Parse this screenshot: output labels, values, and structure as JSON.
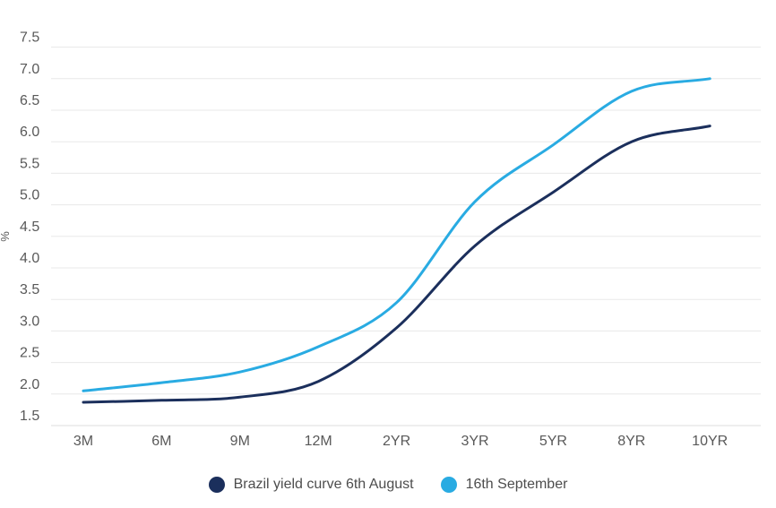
{
  "chart_data": {
    "type": "line",
    "categories": [
      "3M",
      "6M",
      "9M",
      "12M",
      "2YR",
      "3YR",
      "5YR",
      "8YR",
      "10YR"
    ],
    "series": [
      {
        "name": "Brazil yield curve 6th August",
        "color": "#1b2f5c",
        "values": [
          1.87,
          1.9,
          1.95,
          2.2,
          3.05,
          4.35,
          5.2,
          6.0,
          6.25
        ]
      },
      {
        "name": "16th September",
        "color": "#29abe2",
        "values": [
          2.05,
          2.18,
          2.35,
          2.75,
          3.45,
          5.05,
          5.95,
          6.8,
          7.0
        ]
      }
    ],
    "title": "",
    "xlabel": "",
    "ylabel": "%",
    "ylim": [
      1.5,
      7.5
    ],
    "ytick_step": 0.5,
    "yticks": [
      "7.5",
      "7.0",
      "6.5",
      "6.0",
      "5.5",
      "5.0",
      "4.5",
      "4.0",
      "3.5",
      "3.0",
      "2.5",
      "2.0",
      "1.5"
    ],
    "grid": "horizontal",
    "legend_position": "bottom",
    "line_smoothing": "monotone"
  },
  "colors": {
    "background": "#ffffff",
    "gridline": "#e8e8e8",
    "bottom_line": "#dcdcdc",
    "axis_text": "#595959",
    "legend_text": "#4d4d4d"
  }
}
